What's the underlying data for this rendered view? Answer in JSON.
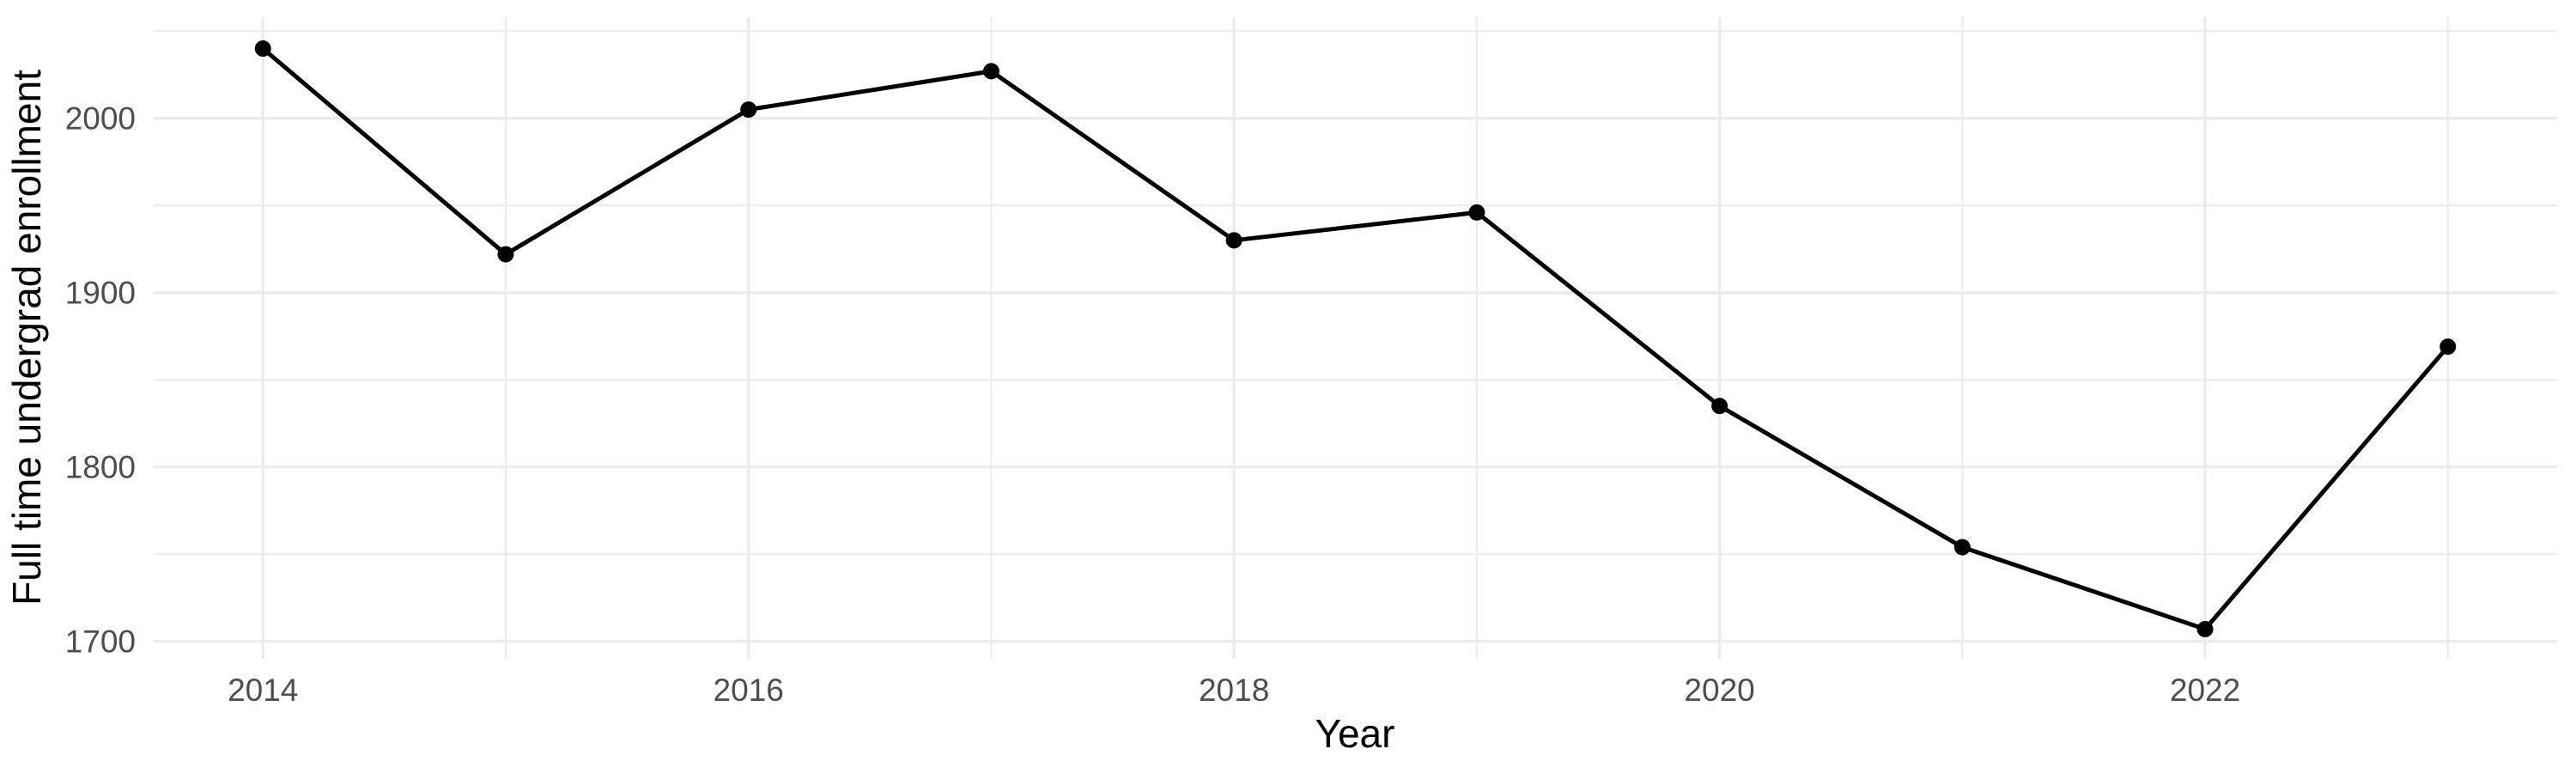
{
  "chart_data": {
    "type": "line",
    "title": "",
    "xlabel": "Year",
    "ylabel": "Full time undergrad enrollment",
    "series": [
      {
        "name": "Full time undergrad enrollment",
        "x": [
          2014,
          2015,
          2016,
          2017,
          2018,
          2019,
          2020,
          2021,
          2022,
          2023
        ],
        "values": [
          2040,
          1922,
          2005,
          2027,
          1930,
          1946,
          1835,
          1754,
          1707,
          1869
        ]
      }
    ],
    "xlim": [
      2013.55,
      2023.45
    ],
    "ylim": [
      1690,
      2058
    ],
    "x_major_ticks": [
      2014,
      2016,
      2018,
      2020,
      2022
    ],
    "x_minor_ticks": [
      2015,
      2017,
      2019,
      2021,
      2023
    ],
    "y_major_ticks": [
      1700,
      1800,
      1900,
      2000
    ],
    "y_minor_ticks": [
      1750,
      1850,
      1950,
      2050
    ],
    "grid": "major+minor",
    "legend_position": "none",
    "point_shape": "filled-circle",
    "colors": {
      "line": "#000000",
      "point": "#000000",
      "grid": "#EBEBEB",
      "tick_label": "#4D4D4D",
      "axis_title": "#000000",
      "background": "#FFFFFF"
    }
  }
}
